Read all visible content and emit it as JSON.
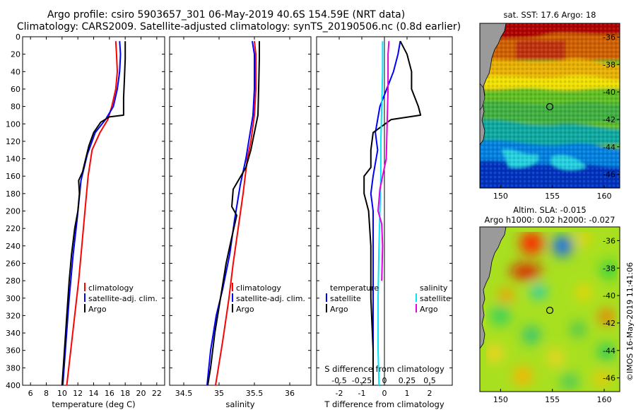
{
  "header": {
    "line1": "Argo profile: csiro 5903657_301 06-May-2019 40.6S 154.59E (NRT data)",
    "line2": "Climatology: CARS2009. Satellite-adjusted climatology: synTS_20190506.nc (0.8d earlier)"
  },
  "colors": {
    "climatology": "#ff0000",
    "satellite": "#0000ff",
    "argo": "#000000",
    "sal_satellite": "#00e5ff",
    "sal_argo": "#e000e0"
  },
  "chart_data": [
    {
      "type": "line",
      "xlabel": "temperature (deg C)",
      "ylabel": "",
      "xlim": [
        5,
        23
      ],
      "ylim": [
        400,
        0
      ],
      "xticks": [
        6,
        8,
        10,
        12,
        14,
        16,
        18,
        20,
        22
      ],
      "yticks": [
        0,
        20,
        40,
        60,
        80,
        100,
        120,
        140,
        160,
        180,
        200,
        220,
        240,
        260,
        280,
        300,
        320,
        340,
        360,
        380,
        400
      ],
      "legend": [
        "climatology",
        "satellite-adj. clim.",
        "Argo"
      ],
      "legend_position": "lower-right",
      "series": [
        {
          "name": "climatology",
          "color": "#ff0000",
          "points": [
            [
              16.8,
              5
            ],
            [
              16.9,
              20
            ],
            [
              17.0,
              40
            ],
            [
              16.8,
              60
            ],
            [
              16.3,
              80
            ],
            [
              15.8,
              95
            ],
            [
              14.8,
              110
            ],
            [
              13.8,
              130
            ],
            [
              13.3,
              160
            ],
            [
              12.9,
              200
            ],
            [
              12.5,
              240
            ],
            [
              12.1,
              280
            ],
            [
              11.6,
              320
            ],
            [
              11.1,
              360
            ],
            [
              10.6,
              400
            ]
          ]
        },
        {
          "name": "satellite-adj. clim.",
          "color": "#0000ff",
          "points": [
            [
              17.3,
              5
            ],
            [
              17.4,
              20
            ],
            [
              17.3,
              40
            ],
            [
              17.0,
              60
            ],
            [
              16.5,
              80
            ],
            [
              15.5,
              95
            ],
            [
              14.2,
              110
            ],
            [
              13.2,
              135
            ],
            [
              12.4,
              165
            ],
            [
              11.9,
              210
            ],
            [
              11.4,
              250
            ],
            [
              10.9,
              300
            ],
            [
              10.5,
              350
            ],
            [
              10.1,
              400
            ]
          ]
        },
        {
          "name": "Argo",
          "color": "#000000",
          "points": [
            [
              18.0,
              5
            ],
            [
              18.0,
              25
            ],
            [
              17.9,
              50
            ],
            [
              17.8,
              70
            ],
            [
              17.8,
              90
            ],
            [
              16.0,
              92
            ],
            [
              14.9,
              98
            ],
            [
              14.0,
              110
            ],
            [
              13.4,
              125
            ],
            [
              13.0,
              140
            ],
            [
              12.6,
              155
            ],
            [
              12.1,
              165
            ],
            [
              12.2,
              180
            ],
            [
              12.0,
              200
            ],
            [
              11.6,
              220
            ],
            [
              11.2,
              250
            ],
            [
              10.9,
              280
            ],
            [
              10.6,
              320
            ],
            [
              10.3,
              360
            ],
            [
              10.0,
              400
            ]
          ]
        }
      ]
    },
    {
      "type": "line",
      "xlabel": "salinity",
      "ylabel": "",
      "xlim": [
        34.3,
        36.3
      ],
      "ylim": [
        400,
        0
      ],
      "xticks": [
        34.5,
        35,
        35.5,
        36
      ],
      "xtick_labels": [
        "34.5",
        "35",
        "35.5",
        "36"
      ],
      "legend": [
        "climatology",
        "satellite-adj. clim.",
        "Argo"
      ],
      "legend_position": "lower-right",
      "series": [
        {
          "name": "climatology",
          "color": "#ff0000",
          "points": [
            [
              35.5,
              5
            ],
            [
              35.52,
              20
            ],
            [
              35.52,
              60
            ],
            [
              35.5,
              90
            ],
            [
              35.45,
              120
            ],
            [
              35.4,
              140
            ],
            [
              35.34,
              180
            ],
            [
              35.27,
              220
            ],
            [
              35.2,
              260
            ],
            [
              35.14,
              300
            ],
            [
              35.05,
              350
            ],
            [
              34.95,
              400
            ]
          ]
        },
        {
          "name": "satellite-adj. clim.",
          "color": "#0000ff",
          "points": [
            [
              35.47,
              5
            ],
            [
              35.5,
              20
            ],
            [
              35.5,
              60
            ],
            [
              35.48,
              90
            ],
            [
              35.42,
              120
            ],
            [
              35.38,
              140
            ],
            [
              35.3,
              170
            ],
            [
              35.22,
              210
            ],
            [
              35.15,
              250
            ],
            [
              35.05,
              290
            ],
            [
              34.96,
              320
            ],
            [
              34.88,
              360
            ],
            [
              34.83,
              400
            ]
          ]
        },
        {
          "name": "Argo",
          "color": "#000000",
          "points": [
            [
              35.57,
              5
            ],
            [
              35.57,
              25
            ],
            [
              35.56,
              60
            ],
            [
              35.55,
              90
            ],
            [
              35.5,
              110
            ],
            [
              35.45,
              130
            ],
            [
              35.38,
              150
            ],
            [
              35.2,
              175
            ],
            [
              35.18,
              195
            ],
            [
              35.25,
              205
            ],
            [
              35.18,
              230
            ],
            [
              35.1,
              260
            ],
            [
              35.02,
              300
            ],
            [
              34.94,
              340
            ],
            [
              34.88,
              380
            ],
            [
              34.84,
              400
            ]
          ]
        }
      ]
    },
    {
      "type": "line",
      "xlabel": "T difference from climatology",
      "xlabel_top": "S difference from climatology",
      "ylabel": "",
      "xlim": [
        -3,
        3
      ],
      "ylim": [
        400,
        0
      ],
      "xticks": [
        -2,
        -1,
        0,
        1,
        2
      ],
      "xtick_labels": [
        "-2",
        "-1",
        "0",
        "1",
        "2"
      ],
      "s_xlim": [
        -0.75,
        0.75
      ],
      "s_xticks": [
        -0.5,
        -0.25,
        0,
        0.25,
        0.5
      ],
      "s_xtick_labels": [
        "-0.5",
        "-0.25",
        "0",
        "0.25",
        "0.5"
      ],
      "legend_left_title": "temperature",
      "legend_right_title": "salinity",
      "legend": [
        "satellite",
        "Argo",
        "satellite",
        "Argo"
      ],
      "series": [
        {
          "name": "T satellite",
          "color": "#0000ff",
          "axis": "T",
          "points": [
            [
              0.7,
              5
            ],
            [
              0.6,
              20
            ],
            [
              0.4,
              40
            ],
            [
              0.1,
              60
            ],
            [
              -0.2,
              80
            ],
            [
              -0.3,
              95
            ],
            [
              -0.4,
              110
            ],
            [
              -0.3,
              130
            ],
            [
              -0.5,
              160
            ],
            [
              -0.6,
              180
            ],
            [
              -0.5,
              200
            ],
            [
              -0.5,
              240
            ],
            [
              -0.5,
              280
            ],
            [
              -0.5,
              340
            ],
            [
              -0.5,
              400
            ]
          ]
        },
        {
          "name": "T Argo",
          "color": "#000000",
          "axis": "T",
          "points": [
            [
              0.7,
              5
            ],
            [
              1.0,
              20
            ],
            [
              1.2,
              40
            ],
            [
              1.2,
              60
            ],
            [
              1.5,
              80
            ],
            [
              1.6,
              90
            ],
            [
              0.3,
              95
            ],
            [
              -0.5,
              110
            ],
            [
              -0.6,
              130
            ],
            [
              -0.6,
              150
            ],
            [
              -0.9,
              160
            ],
            [
              -0.9,
              180
            ],
            [
              -0.7,
              200
            ],
            [
              -0.6,
              240
            ],
            [
              -0.6,
              300
            ],
            [
              -0.5,
              360
            ],
            [
              -0.5,
              400
            ]
          ]
        },
        {
          "name": "S satellite",
          "color": "#00e5ff",
          "axis": "S",
          "points": [
            [
              -0.02,
              5
            ],
            [
              -0.02,
              40
            ],
            [
              -0.03,
              80
            ],
            [
              -0.04,
              120
            ],
            [
              -0.04,
              160
            ],
            [
              -0.05,
              200
            ],
            [
              -0.06,
              240
            ],
            [
              -0.07,
              300
            ],
            [
              -0.07,
              360
            ],
            [
              -0.06,
              400
            ]
          ]
        },
        {
          "name": "S Argo",
          "color": "#e000e0",
          "axis": "S",
          "points": [
            [
              0.05,
              5
            ],
            [
              0.04,
              20
            ],
            [
              0.04,
              60
            ],
            [
              0.03,
              100
            ],
            [
              0.02,
              140
            ],
            [
              -0.02,
              160
            ],
            [
              -0.05,
              175
            ],
            [
              -0.07,
              200
            ],
            [
              -0.03,
              215
            ],
            [
              -0.02,
              240
            ],
            [
              -0.03,
              280
            ]
          ]
        }
      ]
    }
  ],
  "maps": [
    {
      "title": "sat. SST: 17.6 Argo: 18",
      "xticks": [
        150,
        155,
        160
      ],
      "yticks": [
        -36,
        -38,
        -40,
        -42,
        -44,
        -46
      ],
      "xlim": [
        148,
        161.5
      ],
      "ylim": [
        -47,
        -35
      ]
    },
    {
      "title_line1": "Altim. SLA: -0.015",
      "title_line2": "Argo h1000: 0.02 h2000: -0.027",
      "xticks": [
        150,
        155,
        160
      ],
      "yticks": [
        -36,
        -38,
        -40,
        -42,
        -44,
        -46
      ],
      "xlim": [
        148,
        161.5
      ],
      "ylim": [
        -47,
        -35
      ]
    }
  ],
  "marker": {
    "lon": 154.59,
    "lat": -40.6
  },
  "credit": "©IMOS 16-May-2019 11:41:06"
}
